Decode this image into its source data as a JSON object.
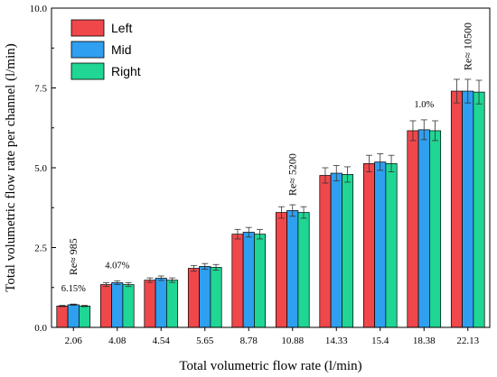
{
  "chart_data": {
    "type": "bar",
    "xlabel": "Total volumetric flow rate (l/min)",
    "ylabel": "Total volumetric flow rate per channel (l/min)",
    "ylim": [
      0,
      10
    ],
    "yticks": [
      "0.0",
      "2.5",
      "5.0",
      "7.5",
      "10.0"
    ],
    "ytick_values": [
      0,
      2.5,
      5,
      7.5,
      10
    ],
    "categories": [
      "2.06",
      "4.08",
      "4.54",
      "5.65",
      "8.78",
      "10.88",
      "14.33",
      "15.4",
      "18.38",
      "22.13"
    ],
    "series": [
      {
        "name": "Left",
        "color": "#f0474b",
        "values": [
          0.67,
          1.34,
          1.48,
          1.85,
          2.92,
          3.6,
          4.76,
          5.13,
          6.16,
          7.4
        ],
        "errors": [
          0.02,
          0.06,
          0.07,
          0.09,
          0.15,
          0.18,
          0.24,
          0.26,
          0.31,
          0.37
        ]
      },
      {
        "name": "Mid",
        "color": "#2f9ff0",
        "values": [
          0.71,
          1.4,
          1.54,
          1.91,
          2.98,
          3.66,
          4.83,
          5.18,
          6.19,
          7.4
        ],
        "errors": [
          0.02,
          0.06,
          0.07,
          0.09,
          0.15,
          0.18,
          0.24,
          0.26,
          0.31,
          0.37
        ]
      },
      {
        "name": "Right",
        "color": "#1fd694",
        "values": [
          0.67,
          1.34,
          1.48,
          1.88,
          2.92,
          3.6,
          4.79,
          5.13,
          6.16,
          7.37
        ],
        "errors": [
          0.02,
          0.06,
          0.07,
          0.09,
          0.15,
          0.18,
          0.24,
          0.26,
          0.31,
          0.37
        ]
      }
    ],
    "annotations": [
      {
        "text": "6.15%",
        "category_index": 0,
        "rotated": false
      },
      {
        "text": "Re≈ 985",
        "category_index": 0,
        "rotated": true
      },
      {
        "text": "4.07%",
        "category_index": 1,
        "rotated": false
      },
      {
        "text": "Re≈ 5200",
        "category_index": 5,
        "rotated": true
      },
      {
        "text": "1.0%",
        "category_index": 8,
        "rotated": false
      },
      {
        "text": "Re≈ 10500",
        "category_index": 9,
        "rotated": true
      }
    ],
    "legend": {
      "position": "top-left",
      "entries": [
        "Left",
        "Mid",
        "Right"
      ]
    },
    "grid": false
  }
}
